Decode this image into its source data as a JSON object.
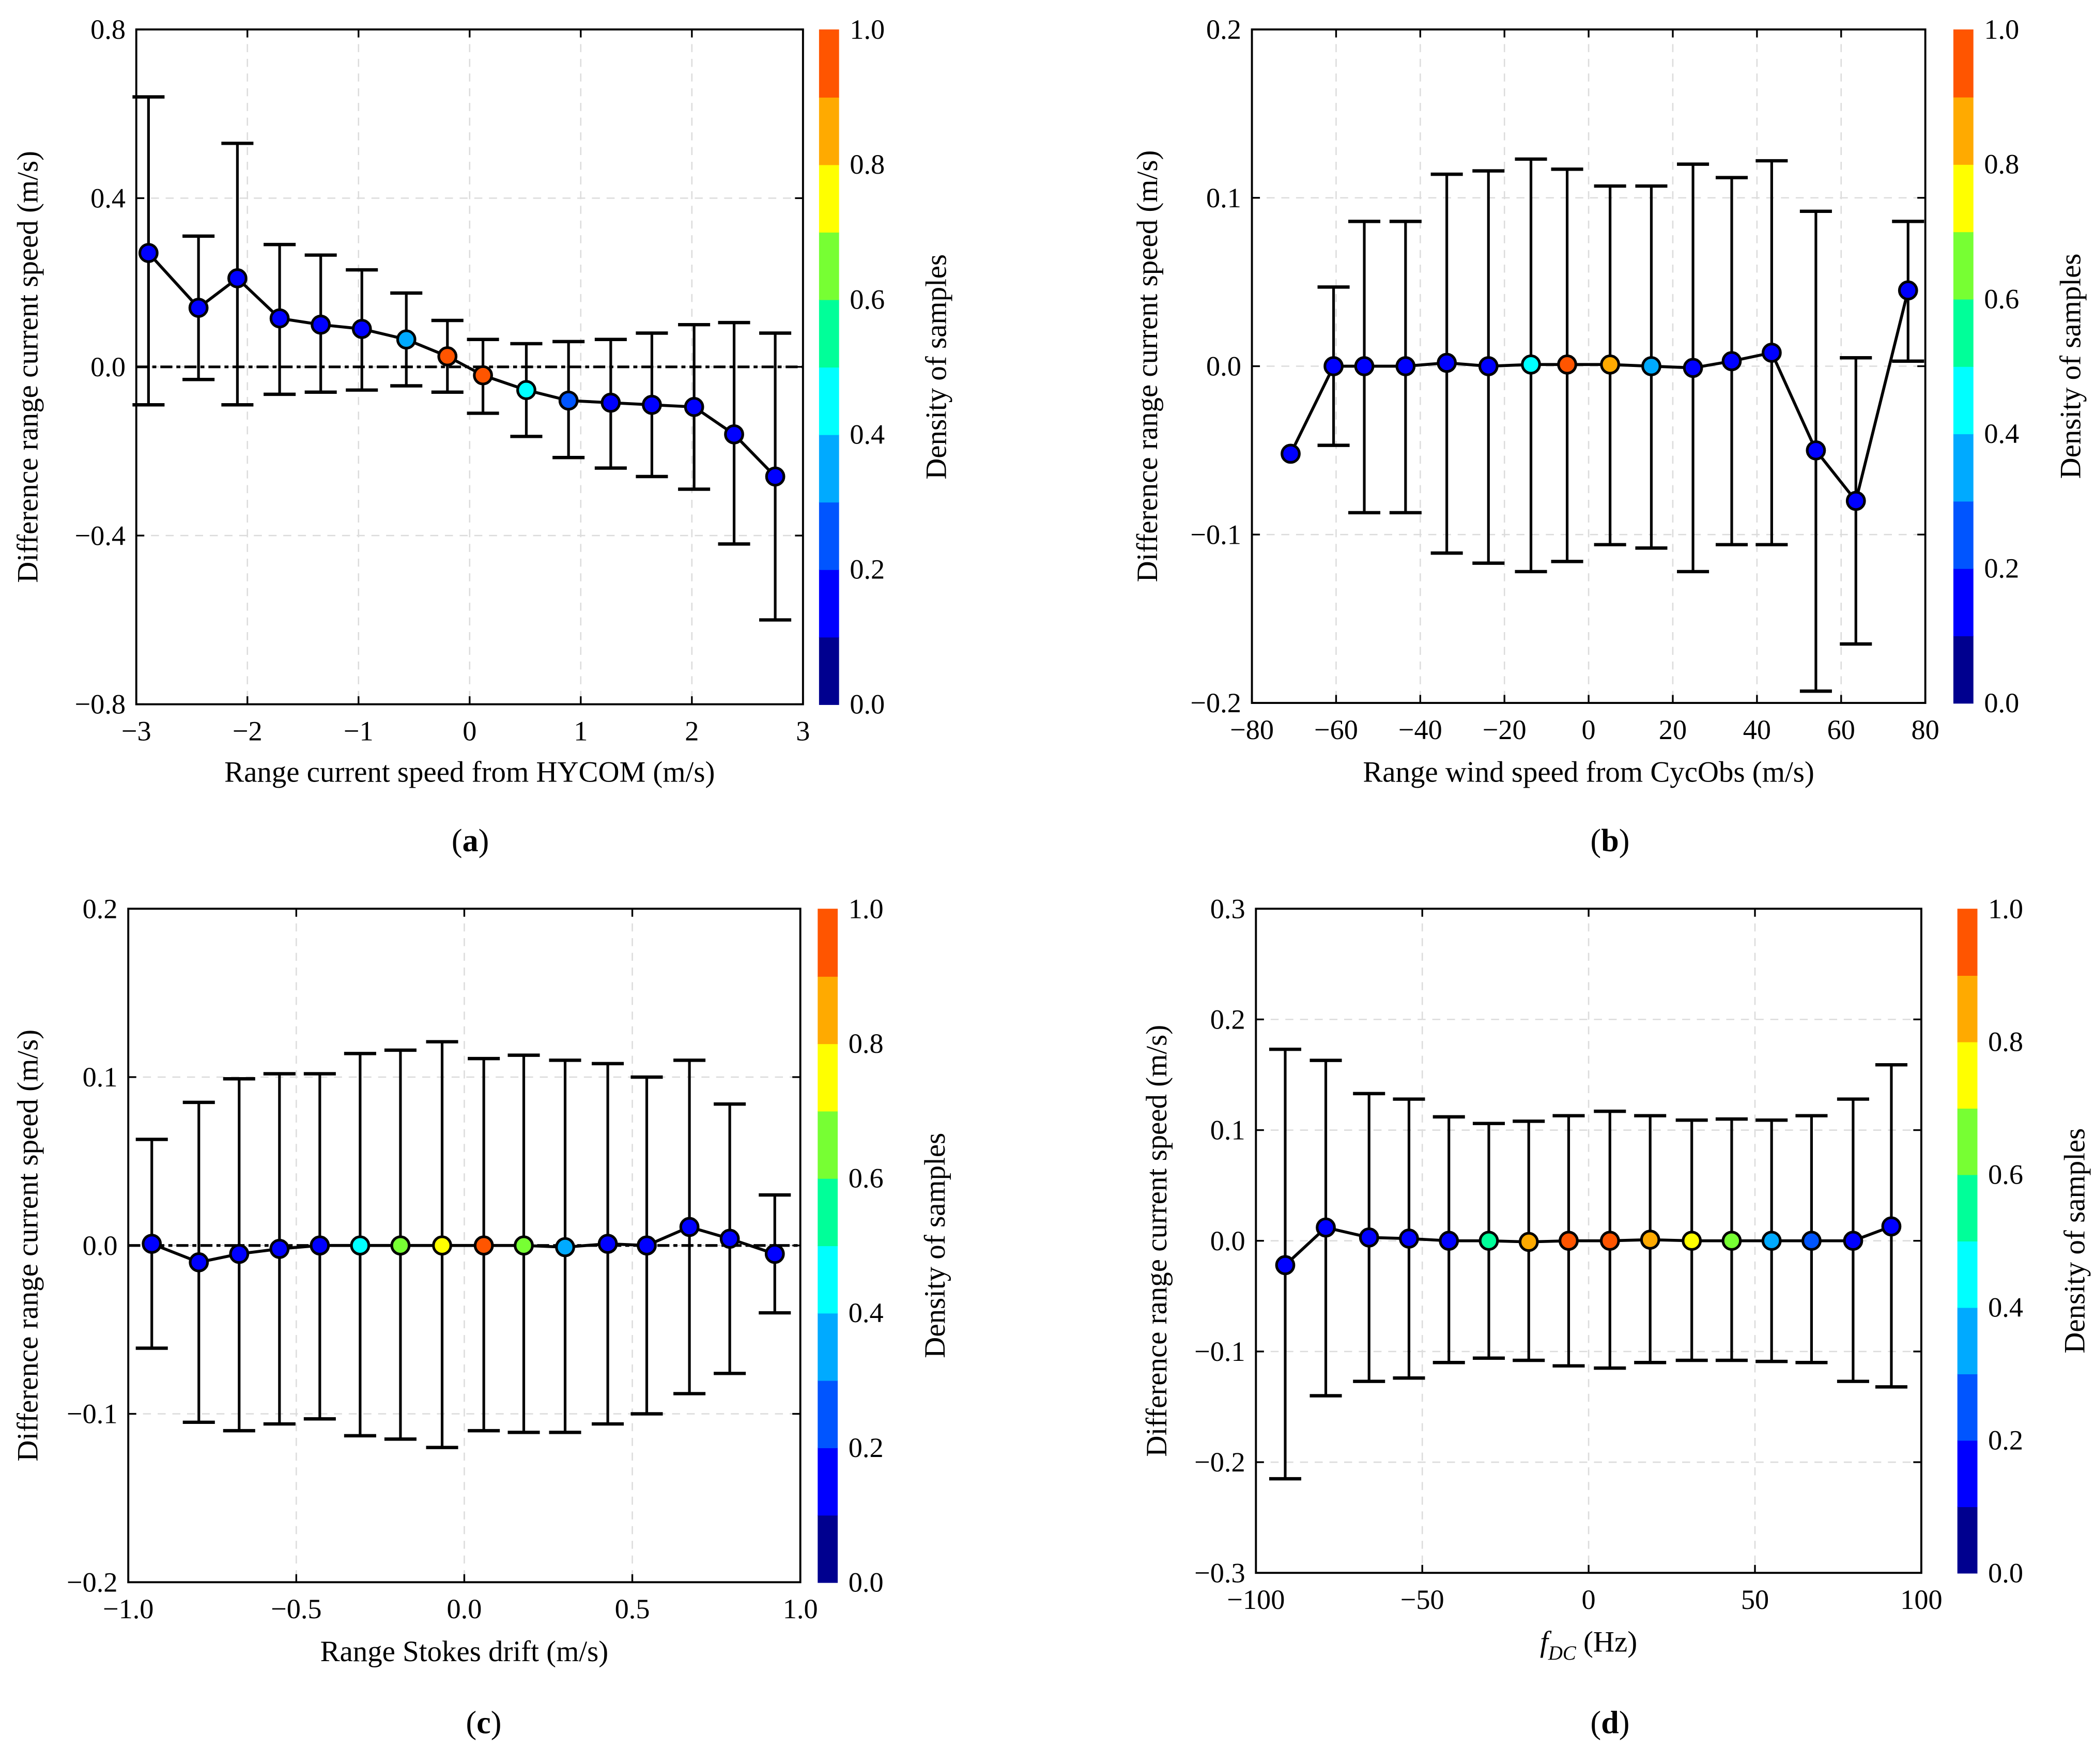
{
  "colormap": [
    "#00008f",
    "#0000ff",
    "#0055ff",
    "#00aaff",
    "#00ffff",
    "#00ff99",
    "#77ff33",
    "#ffff00",
    "#ffaa00",
    "#ff5500"
  ],
  "chart_data": [
    {
      "type": "scatter",
      "panel_label": "a",
      "xlabel": "Range current speed from HYCOM (m/s)",
      "ylabel": "Difference range current speed (m/s)",
      "colorbar_label": "Density of samples",
      "colorbar_ticks": [
        "0.0",
        "0.2",
        "0.4",
        "0.6",
        "0.8",
        "1.0"
      ],
      "xlim": [
        -3,
        3
      ],
      "ylim": [
        -0.8,
        0.8
      ],
      "xticks": [
        -3,
        -2,
        -1,
        0,
        1,
        2,
        3
      ],
      "xtick_labels": [
        "−3",
        "−2",
        "−1",
        "0",
        "1",
        "2",
        "3"
      ],
      "yticks": [
        -0.8,
        -0.4,
        0,
        0.4,
        0.8
      ],
      "ytick_labels": [
        "−0.8",
        "−0.4",
        "0.0",
        "0.4",
        "0.8"
      ],
      "zero_line": true,
      "x": [
        -2.89,
        -2.44,
        -2.09,
        -1.71,
        -1.34,
        -0.97,
        -0.57,
        -0.2,
        0.12,
        0.51,
        0.89,
        1.27,
        1.64,
        2.02,
        2.38,
        2.75
      ],
      "y": [
        0.27,
        0.14,
        0.21,
        0.115,
        0.1,
        0.09,
        0.065,
        0.025,
        -0.02,
        -0.055,
        -0.08,
        -0.085,
        -0.09,
        -0.095,
        -0.16,
        -0.26
      ],
      "err_upper": [
        0.64,
        0.31,
        0.53,
        0.29,
        0.265,
        0.23,
        0.175,
        0.11,
        0.065,
        0.055,
        0.06,
        0.065,
        0.08,
        0.1,
        0.105,
        0.08
      ],
      "err_lower": [
        -0.09,
        -0.03,
        -0.09,
        -0.065,
        -0.06,
        -0.055,
        -0.045,
        -0.06,
        -0.11,
        -0.165,
        -0.215,
        -0.24,
        -0.26,
        -0.29,
        -0.42,
        -0.6
      ],
      "density": [
        0.15,
        0.15,
        0.15,
        0.15,
        0.15,
        0.15,
        0.35,
        0.95,
        0.95,
        0.45,
        0.25,
        0.15,
        0.15,
        0.15,
        0.15,
        0.15
      ]
    },
    {
      "type": "scatter",
      "panel_label": "b",
      "xlabel": "Range wind speed from CycObs (m/s)",
      "ylabel": "Difference range current speed (m/s)",
      "colorbar_label": "Density of samples",
      "colorbar_ticks": [
        "0.0",
        "0.2",
        "0.4",
        "0.6",
        "0.8",
        "1.0"
      ],
      "xlim": [
        -80,
        80
      ],
      "ylim": [
        -0.2,
        0.2
      ],
      "xticks": [
        -80,
        -60,
        -40,
        -20,
        0,
        20,
        40,
        60,
        80
      ],
      "xtick_labels": [
        "−80",
        "−60",
        "−40",
        "−20",
        "0",
        "20",
        "40",
        "60",
        "80"
      ],
      "yticks": [
        -0.2,
        -0.1,
        0,
        0.1,
        0.2
      ],
      "ytick_labels": [
        "−0.2",
        "−0.1",
        "0.0",
        "0.1",
        "0.2"
      ],
      "zero_line": false,
      "x": [
        -70.8,
        -60.6,
        -53.3,
        -43.5,
        -33.7,
        -23.8,
        -13.7,
        -5.1,
        5.1,
        14.9,
        24.8,
        34,
        43.5,
        54,
        63.5,
        75.9
      ],
      "y": [
        -0.052,
        0.0,
        0.0,
        0.0,
        0.002,
        0.0,
        0.001,
        0.001,
        0.001,
        0.0,
        -0.001,
        0.003,
        0.008,
        -0.05,
        -0.08,
        0.045
      ],
      "err_upper": [
        -0.052,
        0.047,
        0.086,
        0.086,
        0.114,
        0.116,
        0.123,
        0.117,
        0.107,
        0.107,
        0.12,
        0.112,
        0.122,
        0.092,
        0.005,
        0.086
      ],
      "err_lower": [
        -0.052,
        -0.047,
        -0.087,
        -0.087,
        -0.111,
        -0.117,
        -0.122,
        -0.116,
        -0.106,
        -0.108,
        -0.122,
        -0.106,
        -0.106,
        -0.193,
        -0.165,
        0.003
      ],
      "density": [
        0.15,
        0.15,
        0.15,
        0.15,
        0.15,
        0.15,
        0.45,
        0.95,
        0.85,
        0.35,
        0.15,
        0.15,
        0.15,
        0.15,
        0.15,
        0.15
      ]
    },
    {
      "type": "scatter",
      "panel_label": "c",
      "xlabel": "Range Stokes drift (m/s)",
      "ylabel": "Difference range current speed (m/s)",
      "colorbar_label": "Density of samples",
      "colorbar_ticks": [
        "0.0",
        "0.2",
        "0.4",
        "0.6",
        "0.8",
        "1.0"
      ],
      "xlim": [
        -1,
        1
      ],
      "ylim": [
        -0.2,
        0.2
      ],
      "xticks": [
        -1,
        -0.5,
        0,
        0.5,
        1
      ],
      "xtick_labels": [
        "−1.0",
        "−0.5",
        "0.0",
        "0.5",
        "1.0"
      ],
      "yticks": [
        -0.2,
        -0.1,
        0,
        0.1,
        0.2
      ],
      "ytick_labels": [
        "−0.2",
        "−0.1",
        "0.0",
        "0.1",
        "0.2"
      ],
      "zero_line": true,
      "x": [
        -0.93,
        -0.79,
        -0.67,
        -0.55,
        -0.43,
        -0.31,
        -0.19,
        -0.066,
        0.058,
        0.177,
        0.3,
        0.427,
        0.543,
        0.67,
        0.79,
        0.924
      ],
      "y": [
        0.001,
        -0.01,
        -0.005,
        -0.002,
        0.0,
        0.0,
        0.0,
        0.0,
        0.0,
        0.0,
        -0.001,
        0.001,
        0.0,
        0.011,
        0.004,
        -0.005
      ],
      "err_upper": [
        0.063,
        0.085,
        0.099,
        0.102,
        0.102,
        0.114,
        0.116,
        0.121,
        0.111,
        0.113,
        0.11,
        0.108,
        0.1,
        0.11,
        0.084,
        0.03
      ],
      "err_lower": [
        -0.061,
        -0.105,
        -0.11,
        -0.106,
        -0.103,
        -0.113,
        -0.115,
        -0.12,
        -0.11,
        -0.111,
        -0.111,
        -0.106,
        -0.1,
        -0.088,
        -0.076,
        -0.04
      ],
      "density": [
        0.15,
        0.15,
        0.15,
        0.15,
        0.15,
        0.45,
        0.65,
        0.75,
        0.95,
        0.65,
        0.35,
        0.15,
        0.15,
        0.15,
        0.15,
        0.15
      ]
    },
    {
      "type": "scatter",
      "panel_label": "d",
      "xlabel_main": "f",
      "xlabel_sub": "DC",
      "xlabel_unit": " (Hz)",
      "ylabel": "Difference range current speed (m/s)",
      "colorbar_label": "Density of samples",
      "colorbar_ticks": [
        "0.0",
        "0.2",
        "0.4",
        "0.6",
        "0.8",
        "1.0"
      ],
      "xlim": [
        -100,
        100
      ],
      "ylim": [
        -0.3,
        0.3
      ],
      "xticks": [
        -100,
        -50,
        0,
        50,
        100
      ],
      "xtick_labels": [
        "−100",
        "−50",
        "0",
        "50",
        "100"
      ],
      "yticks": [
        -0.3,
        -0.2,
        -0.1,
        0,
        0.1,
        0.2,
        0.3
      ],
      "ytick_labels": [
        "−0.3",
        "−0.2",
        "−0.1",
        "0.0",
        "0.1",
        "0.2",
        "0.3"
      ],
      "zero_line": false,
      "x": [
        -91.2,
        -79,
        -66,
        -54,
        -42,
        -30,
        -18,
        -6,
        6.4,
        18.5,
        31,
        43,
        55,
        67,
        79.5,
        91
      ],
      "y": [
        -0.022,
        0.012,
        0.003,
        0.002,
        0.0,
        0.0,
        -0.001,
        0.0,
        0.0,
        0.001,
        0.0,
        0.0,
        0.0,
        0.0,
        0.0,
        0.013
      ],
      "err_upper": [
        0.173,
        0.163,
        0.133,
        0.128,
        0.112,
        0.106,
        0.108,
        0.113,
        0.117,
        0.113,
        0.109,
        0.11,
        0.109,
        0.113,
        0.128,
        0.159
      ],
      "err_lower": [
        -0.215,
        -0.14,
        -0.127,
        -0.124,
        -0.11,
        -0.106,
        -0.108,
        -0.113,
        -0.115,
        -0.11,
        -0.108,
        -0.108,
        -0.109,
        -0.11,
        -0.127,
        -0.132
      ],
      "density": [
        0.15,
        0.15,
        0.15,
        0.15,
        0.15,
        0.55,
        0.85,
        0.95,
        0.95,
        0.85,
        0.75,
        0.65,
        0.35,
        0.25,
        0.15,
        0.15
      ]
    }
  ]
}
